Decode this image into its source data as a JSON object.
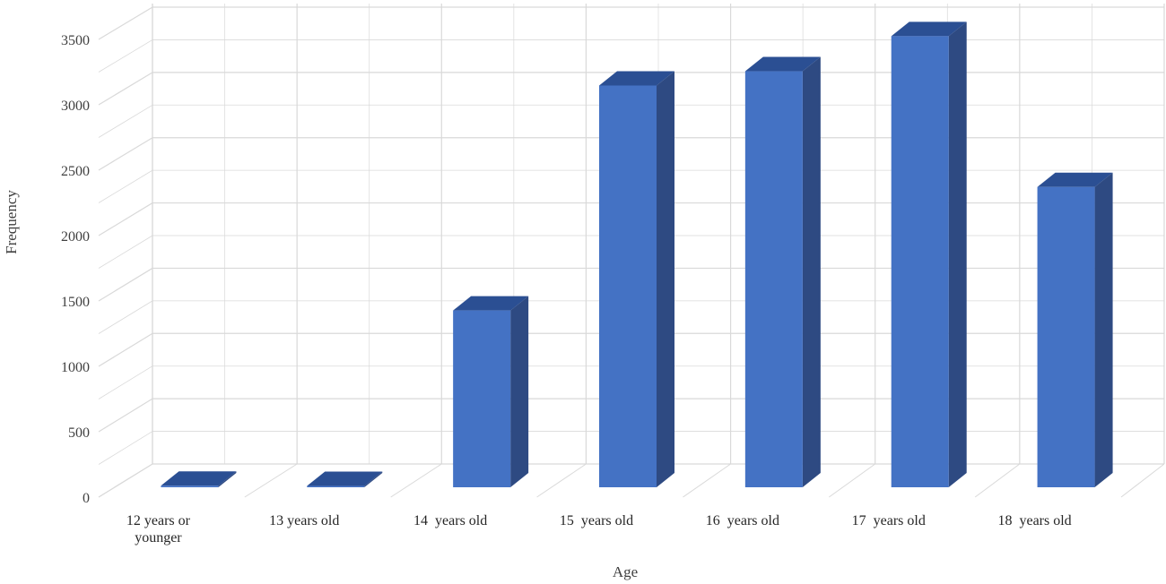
{
  "chart_data": {
    "type": "bar",
    "style": "3d-column",
    "categories": [
      [
        "12 years or",
        "younger"
      ],
      [
        "13 years old"
      ],
      [
        "14  years old"
      ],
      [
        "15  years old"
      ],
      [
        "16  years old"
      ],
      [
        "17  years old"
      ],
      [
        "18  years old"
      ]
    ],
    "values": [
      12,
      10,
      1360,
      3090,
      3200,
      3470,
      2310
    ],
    "xlabel": "Age",
    "ylabel": "Frequency",
    "ylim": [
      0,
      3500
    ],
    "yticks": [
      0,
      500,
      1000,
      1500,
      2000,
      2500,
      3000,
      3500
    ],
    "grid": true,
    "colors": {
      "bar_front": "#4472c4",
      "bar_side": "#2e4a82",
      "bar_top": "#2b4f93",
      "grid": "#d9d9d9"
    }
  }
}
